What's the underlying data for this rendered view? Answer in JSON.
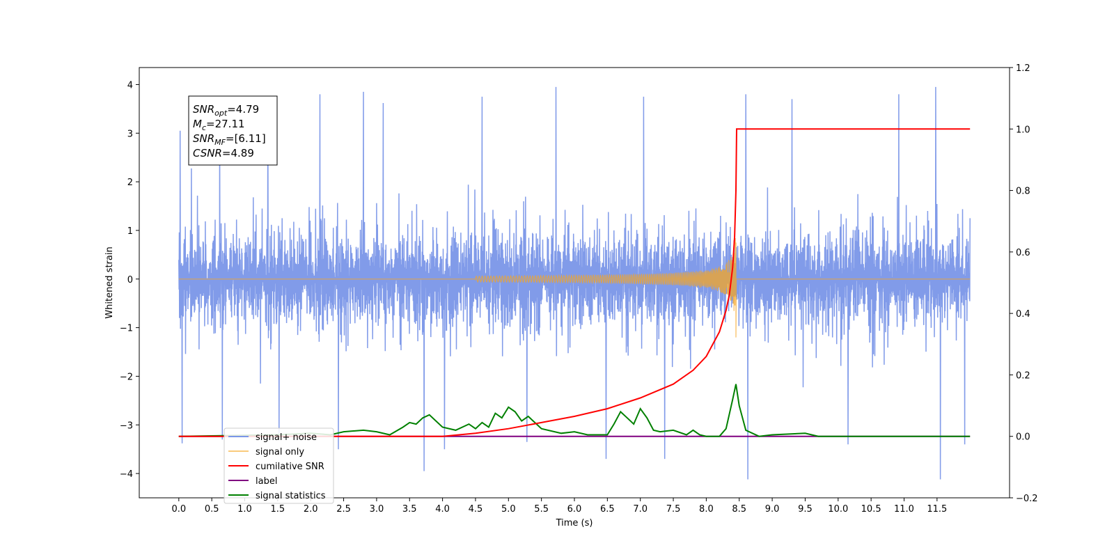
{
  "chart_data": {
    "type": "line",
    "xlabel": "Time (s)",
    "ylabel": "Whitened strain",
    "xlim": [
      -0.6,
      12.6
    ],
    "ylim": [
      -4.5,
      4.35
    ],
    "y2lim": [
      -0.2,
      1.2
    ],
    "x_ticks": [
      0.0,
      0.5,
      1.0,
      1.5,
      2.0,
      2.5,
      3.0,
      3.5,
      4.0,
      4.5,
      5.0,
      5.5,
      6.0,
      6.5,
      7.0,
      7.5,
      8.0,
      8.5,
      9.0,
      9.5,
      10.0,
      10.5,
      11.0,
      11.5
    ],
    "x_tick_labels": [
      "0.0",
      "0.5",
      "1.0",
      "1.5",
      "2.0",
      "2.5",
      "3.0",
      "3.5",
      "4.0",
      "4.5",
      "5.0",
      "5.5",
      "6.0",
      "6.5",
      "7.0",
      "7.5",
      "8.0",
      "8.5",
      "9.0",
      "9.5",
      "10.0",
      "10.5",
      "11.0",
      "11.5"
    ],
    "y_ticks": [
      -4,
      -3,
      -2,
      -1,
      0,
      1,
      2,
      3,
      4
    ],
    "y_tick_labels": [
      "−4",
      "−3",
      "−2",
      "−1",
      "0",
      "1",
      "2",
      "3",
      "4"
    ],
    "y2_ticks": [
      -0.2,
      0.0,
      0.2,
      0.4,
      0.6,
      0.8,
      1.0,
      1.2
    ],
    "y2_tick_labels": [
      "−0.2",
      "0.0",
      "0.2",
      "0.4",
      "0.6",
      "0.8",
      "1.0",
      "1.2"
    ],
    "grid": false,
    "legend_position": "bottom-left",
    "annotation": {
      "lines": [
        {
          "base": "SNR",
          "sub": "opt",
          "value": "=4.79"
        },
        {
          "base": "M",
          "sub": "c",
          "value": "=27.11"
        },
        {
          "base": "SNR",
          "sub": "MF",
          "value": "=[6.11]"
        },
        {
          "base": "CSNR",
          "sub": "",
          "value": "=4.89"
        }
      ]
    },
    "series": [
      {
        "name": "signal+ noise",
        "color": "#7a96e8",
        "axis": "left",
        "kind": "noise_band",
        "x_range": [
          0.0,
          12.0
        ],
        "typical_envelope": [
          -2.3,
          2.3
        ],
        "peaks": [
          {
            "x": 0.02,
            "y": 3.05
          },
          {
            "x": 0.05,
            "y": -3.38
          },
          {
            "x": 0.62,
            "y": 3.25
          },
          {
            "x": 0.66,
            "y": -3.3
          },
          {
            "x": 1.35,
            "y": 3.6
          },
          {
            "x": 1.52,
            "y": -3.2
          },
          {
            "x": 2.14,
            "y": 3.8
          },
          {
            "x": 2.42,
            "y": -3.5
          },
          {
            "x": 2.8,
            "y": 3.85
          },
          {
            "x": 3.1,
            "y": 3.62
          },
          {
            "x": 3.72,
            "y": -3.95
          },
          {
            "x": 4.03,
            "y": -3.5
          },
          {
            "x": 4.6,
            "y": 3.75
          },
          {
            "x": 5.28,
            "y": -3.35
          },
          {
            "x": 5.72,
            "y": 3.95
          },
          {
            "x": 6.48,
            "y": -3.7
          },
          {
            "x": 7.05,
            "y": 3.75
          },
          {
            "x": 7.37,
            "y": -3.7
          },
          {
            "x": 8.6,
            "y": 3.8
          },
          {
            "x": 8.63,
            "y": -4.12
          },
          {
            "x": 9.3,
            "y": 3.7
          },
          {
            "x": 10.15,
            "y": -3.4
          },
          {
            "x": 10.92,
            "y": 3.8
          },
          {
            "x": 11.48,
            "y": 3.95
          },
          {
            "x": 11.55,
            "y": -4.12
          },
          {
            "x": 11.92,
            "y": -3.4
          }
        ]
      },
      {
        "name": "signal only",
        "color": "#f5a623",
        "axis": "left",
        "kind": "chirp",
        "x_range": [
          0.0,
          12.0
        ],
        "chirp_start": 4.5,
        "merger_x": 8.45,
        "merger_min": -1.2,
        "merger_max": 0.75
      },
      {
        "name": "cumilative SNR",
        "color": "#ff0000",
        "axis": "right",
        "x": [
          0.0,
          4.0,
          4.5,
          5.0,
          5.5,
          6.0,
          6.5,
          7.0,
          7.5,
          7.8,
          8.0,
          8.2,
          8.3,
          8.35,
          8.4,
          8.43,
          8.45,
          8.46,
          12.0
        ],
        "values": [
          0.0,
          0.0,
          0.01,
          0.025,
          0.045,
          0.065,
          0.09,
          0.125,
          0.17,
          0.215,
          0.26,
          0.34,
          0.41,
          0.46,
          0.55,
          0.65,
          0.8,
          1.0,
          1.0
        ]
      },
      {
        "name": "label",
        "color": "#800080",
        "axis": "right",
        "x": [
          0.0,
          12.0
        ],
        "values": [
          0.0,
          0.0
        ]
      },
      {
        "name": "signal statistics",
        "color": "#008000",
        "axis": "right",
        "x": [
          0.0,
          1.5,
          2.0,
          2.3,
          2.5,
          2.8,
          3.0,
          3.2,
          3.4,
          3.5,
          3.6,
          3.7,
          3.8,
          3.9,
          4.0,
          4.2,
          4.4,
          4.5,
          4.6,
          4.7,
          4.8,
          4.9,
          5.0,
          5.1,
          5.2,
          5.3,
          5.5,
          5.8,
          6.0,
          6.2,
          6.5,
          6.6,
          6.7,
          6.8,
          6.9,
          7.0,
          7.1,
          7.2,
          7.3,
          7.5,
          7.7,
          7.8,
          7.9,
          8.0,
          8.2,
          8.3,
          8.4,
          8.45,
          8.5,
          8.6,
          8.8,
          9.0,
          9.5,
          9.7,
          10.0,
          12.0
        ],
        "values": [
          0.0,
          0.005,
          0.01,
          0.005,
          0.015,
          0.02,
          0.015,
          0.005,
          0.03,
          0.045,
          0.04,
          0.06,
          0.07,
          0.05,
          0.03,
          0.02,
          0.04,
          0.025,
          0.045,
          0.03,
          0.075,
          0.06,
          0.095,
          0.08,
          0.05,
          0.065,
          0.025,
          0.01,
          0.015,
          0.005,
          0.005,
          0.04,
          0.08,
          0.06,
          0.04,
          0.09,
          0.06,
          0.02,
          0.015,
          0.02,
          0.005,
          0.02,
          0.005,
          0.0,
          0.0,
          0.025,
          0.12,
          0.17,
          0.1,
          0.02,
          0.0,
          0.005,
          0.01,
          0.0,
          0.0,
          0.0
        ]
      }
    ]
  }
}
